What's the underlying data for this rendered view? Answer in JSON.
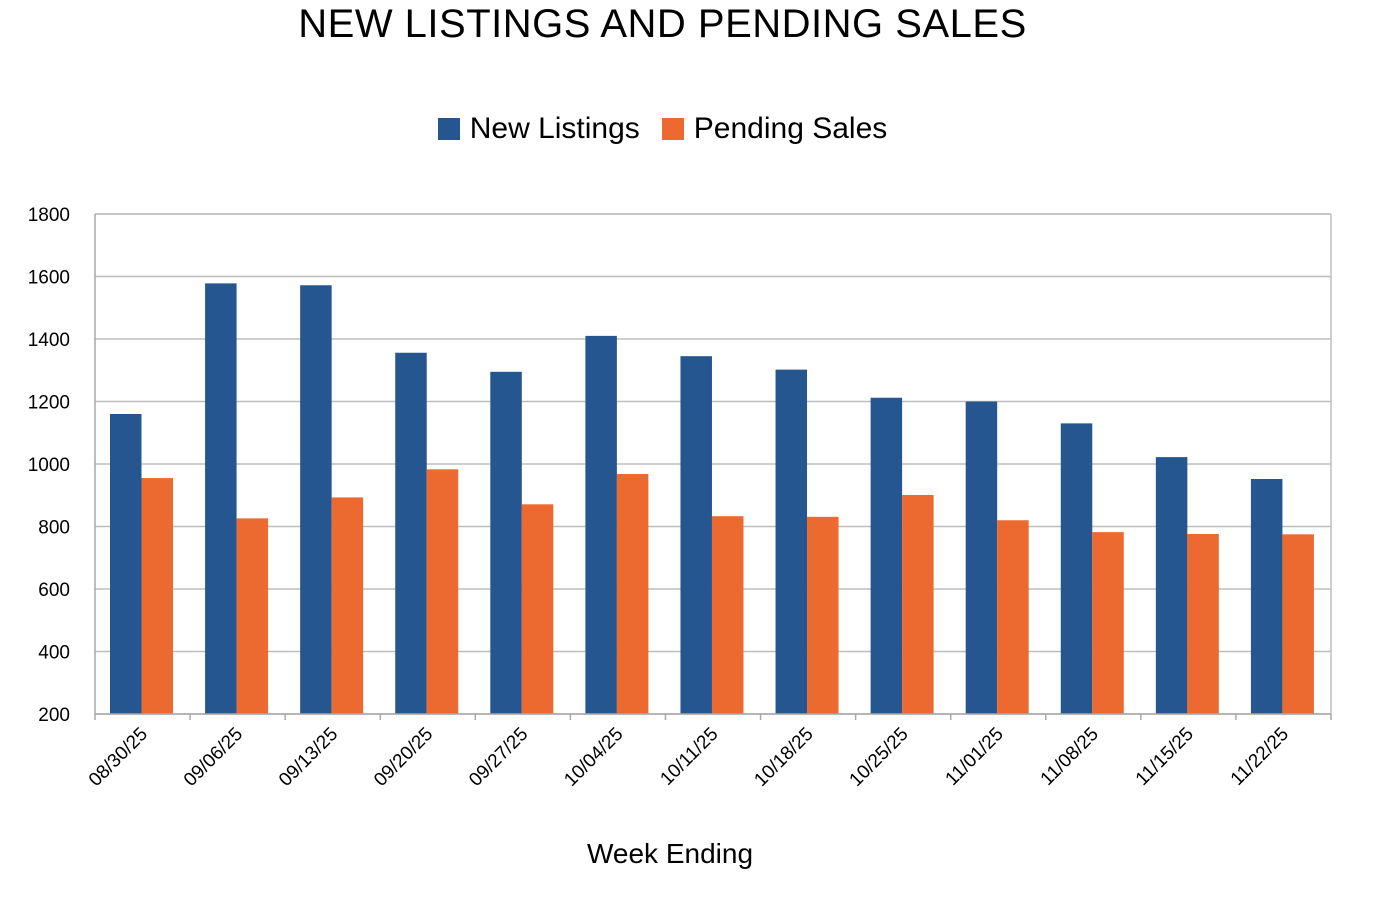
{
  "chart_data": {
    "type": "bar",
    "title": "NEW LISTINGS AND PENDING SALES",
    "xlabel": "Week Ending",
    "ylabel": "",
    "ylim": [
      200,
      1800
    ],
    "yticks": [
      200,
      400,
      600,
      800,
      1000,
      1200,
      1400,
      1600,
      1800
    ],
    "grid": true,
    "legend_position": "top",
    "categories": [
      "08/30/25",
      "09/06/25",
      "09/13/25",
      "09/20/25",
      "09/27/25",
      "10/04/25",
      "10/11/25",
      "10/18/25",
      "10/25/25",
      "11/01/25",
      "11/08/25",
      "11/15/25",
      "11/22/25"
    ],
    "series": [
      {
        "name": "New Listings",
        "color": "#26568f",
        "values": [
          1160,
          1578,
          1572,
          1356,
          1295,
          1410,
          1345,
          1302,
          1212,
          1200,
          1130,
          1022,
          952
        ]
      },
      {
        "name": "Pending Sales",
        "color": "#ec6930",
        "values": [
          955,
          826,
          893,
          983,
          871,
          968,
          833,
          831,
          901,
          820,
          782,
          776,
          775
        ]
      }
    ]
  }
}
